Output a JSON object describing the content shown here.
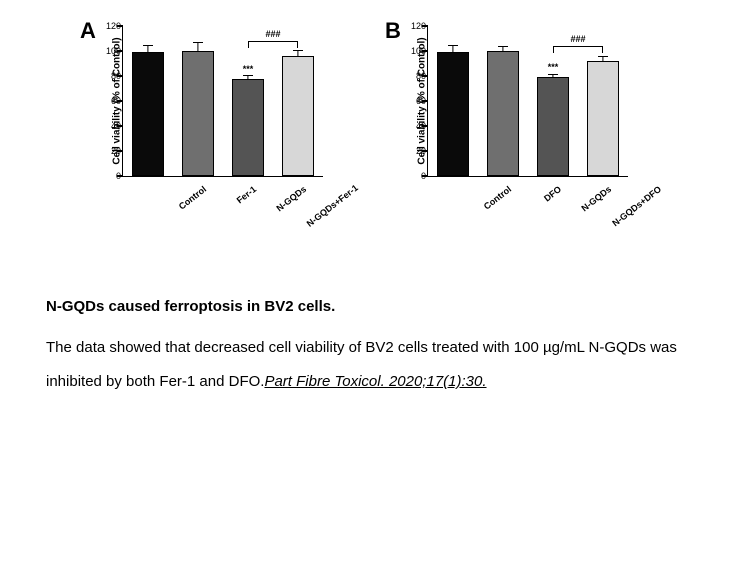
{
  "figure": {
    "panels": [
      {
        "letter": "A",
        "type": "bar",
        "ylabel": "Cell viability (% of Control)",
        "ylabel_fontsize": 10,
        "ylim": [
          0,
          120
        ],
        "ytick_step": 20,
        "label_fontsize": 9,
        "categories": [
          "Control",
          "Fer-1",
          "N-GQDs",
          "N-GQDs+Fer-1"
        ],
        "values": [
          99,
          100,
          78,
          96
        ],
        "errors": [
          6,
          7,
          3,
          5
        ],
        "bar_colors": [
          "#0a0a0a",
          "#6f6f6f",
          "#545454",
          "#d7d7d7"
        ],
        "bar_width": 0.64,
        "border_color": "#000000",
        "background_color": "#ffffff",
        "significance": [
          {
            "kind": "stars",
            "label": "***",
            "over_index": 2,
            "y": 82
          },
          {
            "kind": "bracket",
            "label": "###",
            "from_index": 2,
            "to_index": 3,
            "y": 108
          }
        ]
      },
      {
        "letter": "B",
        "type": "bar",
        "ylabel": "Cell viability (% of Control)",
        "ylabel_fontsize": 10,
        "ylim": [
          0,
          120
        ],
        "ytick_step": 20,
        "label_fontsize": 9,
        "categories": [
          "Control",
          "DFO",
          "N-GQDs",
          "N-GQDs+DFO"
        ],
        "values": [
          99,
          100,
          79,
          92
        ],
        "errors": [
          6,
          4,
          3,
          4
        ],
        "bar_colors": [
          "#0a0a0a",
          "#6f6f6f",
          "#545454",
          "#d7d7d7"
        ],
        "bar_width": 0.64,
        "border_color": "#000000",
        "background_color": "#ffffff",
        "significance": [
          {
            "kind": "stars",
            "label": "***",
            "over_index": 2,
            "y": 83
          },
          {
            "kind": "bracket",
            "label": "###",
            "from_index": 2,
            "to_index": 3,
            "y": 104
          }
        ]
      }
    ]
  },
  "caption": {
    "title": "N-GQDs caused ferroptosis in BV2 cells.",
    "body_pre": "The data showed that decreased cell viability of BV2 cells treated with 100 µg/mL N-GQDs was inhibited by both Fer-1 and DFO.",
    "citation": "Part Fibre Toxicol. 2020;17(1):30."
  }
}
